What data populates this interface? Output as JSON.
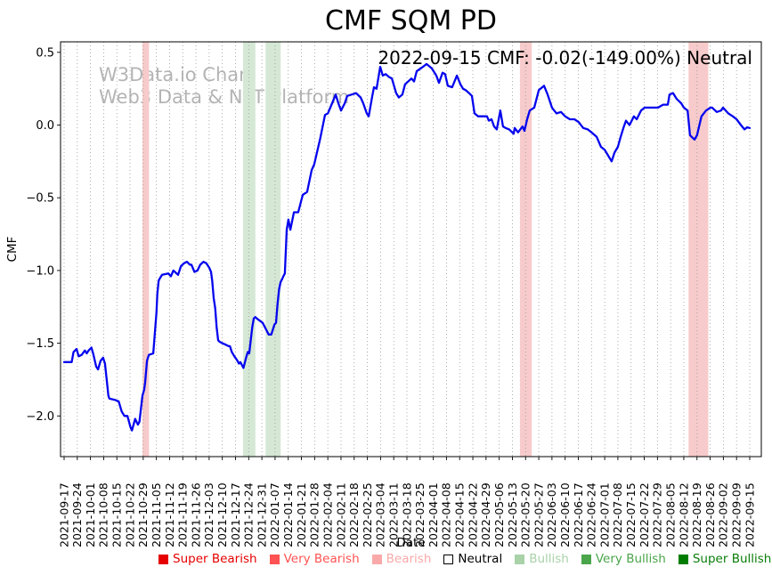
{
  "title": "CMF SQM PD",
  "annotation": "2022-09-15 CMF: -0.02(-149.00%) Neutral",
  "watermark": {
    "line1": "W3Data.io Chart",
    "line2": "Web3 Data & NFT Platform"
  },
  "axes": {
    "x_label": "Date",
    "y_label": "CMF",
    "y_tick_labels": [
      "0.5",
      "0.0",
      "−0.5",
      "−1.0",
      "−1.5",
      "−2.0"
    ],
    "y_tick_values": [
      0.5,
      0.0,
      -0.5,
      -1.0,
      -1.5,
      -2.0
    ]
  },
  "legend": [
    {
      "label": "Super Bearish",
      "color": "#e60000",
      "text_color": "#e60000",
      "edge": "#e60000"
    },
    {
      "label": "Very Bearish",
      "color": "#ff5252",
      "text_color": "#ff5252",
      "edge": "#ff5252"
    },
    {
      "label": "Bearish",
      "color": "#f9a9a9",
      "text_color": "#f9a9a9",
      "edge": "#f9a9a9"
    },
    {
      "label": "Neutral",
      "color": "#ffffff",
      "text_color": "#000000",
      "edge": "#000000"
    },
    {
      "label": "Bullish",
      "color": "#a9d2a9",
      "text_color": "#a9d2a9",
      "edge": "#a9d2a9"
    },
    {
      "label": "Very Bullish",
      "color": "#4ba54b",
      "text_color": "#4ba54b",
      "edge": "#4ba54b"
    },
    {
      "label": "Super Bullish",
      "color": "#007d00",
      "text_color": "#0a7d0a",
      "edge": "#007d00"
    }
  ],
  "chart_data": {
    "type": "line",
    "title": "CMF SQM PD",
    "xlabel": "Date",
    "ylabel": "CMF",
    "ylim": [
      -2.28,
      0.57
    ],
    "grid": "vertical-dotted",
    "legend_position": "bottom",
    "line_color": "#0505ee",
    "x_tick_labels": [
      "2021-09-17",
      "2021-09-24",
      "2021-10-01",
      "2021-10-08",
      "2021-10-15",
      "2021-10-22",
      "2021-10-29",
      "2021-11-05",
      "2021-11-12",
      "2021-11-19",
      "2021-11-26",
      "2021-12-03",
      "2021-12-10",
      "2021-12-17",
      "2021-12-24",
      "2021-12-31",
      "2022-01-07",
      "2022-01-14",
      "2022-01-21",
      "2022-01-28",
      "2022-02-04",
      "2022-02-11",
      "2022-02-18",
      "2022-02-25",
      "2022-03-04",
      "2022-03-11",
      "2022-03-18",
      "2022-03-25",
      "2022-04-01",
      "2022-04-08",
      "2022-04-15",
      "2022-04-22",
      "2022-04-29",
      "2022-05-06",
      "2022-05-13",
      "2022-05-20",
      "2022-05-27",
      "2022-06-03",
      "2022-06-10",
      "2022-06-17",
      "2022-06-24",
      "2022-07-01",
      "2022-07-08",
      "2022-07-15",
      "2022-07-22",
      "2022-07-29",
      "2022-08-05",
      "2022-08-12",
      "2022-08-19",
      "2022-08-26",
      "2022-09-02",
      "2022-09-09",
      "2022-09-15"
    ],
    "x_unit": "days_since_2021-09-17",
    "x_range_days": [
      0,
      364
    ],
    "band_colors": {
      "bearish": "#f7cbcb",
      "bullish": "#d5e7d5"
    },
    "bands": [
      {
        "from_day": 41.6,
        "to_day": 45.1,
        "kind": "bearish"
      },
      {
        "from_day": 95.0,
        "to_day": 101.5,
        "kind": "bullish"
      },
      {
        "from_day": 107.0,
        "to_day": 115.0,
        "kind": "bullish"
      },
      {
        "from_day": 242.0,
        "to_day": 248.3,
        "kind": "bearish"
      },
      {
        "from_day": 331.5,
        "to_day": 342.0,
        "kind": "bearish"
      }
    ],
    "series": [
      {
        "name": "CMF",
        "points": [
          [
            0,
            -1.63
          ],
          [
            4,
            -1.63
          ],
          [
            5,
            -1.56
          ],
          [
            6.6,
            -1.54
          ],
          [
            7.7,
            -1.59
          ],
          [
            9.3,
            -1.58
          ],
          [
            11,
            -1.55
          ],
          [
            12,
            -1.57
          ],
          [
            13,
            -1.55
          ],
          [
            14.5,
            -1.53
          ],
          [
            15.6,
            -1.58
          ],
          [
            17,
            -1.66
          ],
          [
            18,
            -1.68
          ],
          [
            19.4,
            -1.62
          ],
          [
            20.7,
            -1.6
          ],
          [
            21.7,
            -1.64
          ],
          [
            22.7,
            -1.76
          ],
          [
            23.5,
            -1.86
          ],
          [
            24,
            -1.88
          ],
          [
            27,
            -1.89
          ],
          [
            29,
            -1.9
          ],
          [
            30.6,
            -1.97
          ],
          [
            32,
            -2.0
          ],
          [
            33.6,
            -2.0
          ],
          [
            35.3,
            -2.08
          ],
          [
            36,
            -2.1
          ],
          [
            37.7,
            -2.02
          ],
          [
            39.2,
            -2.06
          ],
          [
            40,
            -2.04
          ],
          [
            41.6,
            -1.86
          ],
          [
            42.5,
            -1.82
          ],
          [
            43,
            -1.77
          ],
          [
            44,
            -1.62
          ],
          [
            45,
            -1.58
          ],
          [
            47.3,
            -1.57
          ],
          [
            47.7,
            -1.51
          ],
          [
            49,
            -1.29
          ],
          [
            49.5,
            -1.16
          ],
          [
            50.2,
            -1.07
          ],
          [
            51,
            -1.05
          ],
          [
            52,
            -1.03
          ],
          [
            55.3,
            -1.02
          ],
          [
            56.7,
            -1.04
          ],
          [
            58,
            -1.0
          ],
          [
            60.5,
            -1.03
          ],
          [
            62,
            -0.97
          ],
          [
            63.7,
            -0.95
          ],
          [
            65.2,
            -0.94
          ],
          [
            66.8,
            -0.96
          ],
          [
            67.6,
            -0.96
          ],
          [
            69.2,
            -1.01
          ],
          [
            70.8,
            -1.0
          ],
          [
            72.3,
            -0.96
          ],
          [
            74,
            -0.94
          ],
          [
            75.5,
            -0.95
          ],
          [
            77,
            -0.98
          ],
          [
            78,
            -1.01
          ],
          [
            78.6,
            -1.07
          ],
          [
            79.4,
            -1.19
          ],
          [
            80.2,
            -1.26
          ],
          [
            81,
            -1.39
          ],
          [
            81.8,
            -1.48
          ],
          [
            82.6,
            -1.49
          ],
          [
            84,
            -1.5
          ],
          [
            85.7,
            -1.51
          ],
          [
            87.3,
            -1.52
          ],
          [
            88,
            -1.52
          ],
          [
            89,
            -1.56
          ],
          [
            90.4,
            -1.59
          ],
          [
            92,
            -1.62
          ],
          [
            92.8,
            -1.64
          ],
          [
            93.6,
            -1.63
          ],
          [
            95.2,
            -1.67
          ],
          [
            96.8,
            -1.59
          ],
          [
            97.5,
            -1.56
          ],
          [
            98.3,
            -1.57
          ],
          [
            99.9,
            -1.39
          ],
          [
            100.7,
            -1.33
          ],
          [
            101.5,
            -1.32
          ],
          [
            102.3,
            -1.33
          ],
          [
            105.4,
            -1.36
          ],
          [
            106.2,
            -1.38
          ],
          [
            107.8,
            -1.42
          ],
          [
            108.6,
            -1.44
          ],
          [
            110,
            -1.44
          ],
          [
            111.7,
            -1.37
          ],
          [
            112.5,
            -1.36
          ],
          [
            113.3,
            -1.23
          ],
          [
            114.1,
            -1.13
          ],
          [
            114.9,
            -1.08
          ],
          [
            115.7,
            -1.06
          ],
          [
            116.4,
            -1.04
          ],
          [
            117.2,
            -1.02
          ],
          [
            118.2,
            -0.72
          ],
          [
            119.1,
            -0.65
          ],
          [
            120.1,
            -0.72
          ],
          [
            122,
            -0.6
          ],
          [
            124.3,
            -0.6
          ],
          [
            126.7,
            -0.48
          ],
          [
            129,
            -0.46
          ],
          [
            131.4,
            -0.31
          ],
          [
            132.8,
            -0.27
          ],
          [
            136,
            -0.09
          ],
          [
            138.5,
            0.07
          ],
          [
            140,
            0.08
          ],
          [
            142.3,
            0.15
          ],
          [
            144.2,
            0.21
          ],
          [
            145.6,
            0.15
          ],
          [
            147,
            0.1
          ],
          [
            149,
            0.15
          ],
          [
            150.3,
            0.2
          ],
          [
            152.7,
            0.21
          ],
          [
            155,
            0.22
          ],
          [
            157.4,
            0.19
          ],
          [
            158.8,
            0.15
          ],
          [
            160.7,
            0.08
          ],
          [
            161.7,
            0.06
          ],
          [
            163.6,
            0.2
          ],
          [
            164.5,
            0.26
          ],
          [
            165.9,
            0.25
          ],
          [
            167.8,
            0.4
          ],
          [
            169.2,
            0.34
          ],
          [
            170.7,
            0.35
          ],
          [
            172.6,
            0.33
          ],
          [
            174,
            0.32
          ],
          [
            176.3,
            0.22
          ],
          [
            177.7,
            0.19
          ],
          [
            179.6,
            0.21
          ],
          [
            181,
            0.28
          ],
          [
            184.4,
            0.32
          ],
          [
            185.8,
            0.3
          ],
          [
            187.2,
            0.37
          ],
          [
            190.5,
            0.4
          ],
          [
            192.4,
            0.42
          ],
          [
            195.2,
            0.39
          ],
          [
            197.6,
            0.34
          ],
          [
            199,
            0.29
          ],
          [
            200.9,
            0.36
          ],
          [
            202.3,
            0.35
          ],
          [
            203.7,
            0.27
          ],
          [
            206,
            0.26
          ],
          [
            208.5,
            0.34
          ],
          [
            210.4,
            0.28
          ],
          [
            211.8,
            0.25
          ],
          [
            213.2,
            0.24
          ],
          [
            215,
            0.22
          ],
          [
            216.5,
            0.2
          ],
          [
            217.9,
            0.08
          ],
          [
            219.8,
            0.06
          ],
          [
            222.2,
            0.06
          ],
          [
            224.5,
            0.06
          ],
          [
            225.5,
            0.03
          ],
          [
            226.9,
            0.04
          ],
          [
            228.3,
            -0.01
          ],
          [
            229.7,
            -0.03
          ],
          [
            231.6,
            0.1
          ],
          [
            233,
            -0.01
          ],
          [
            234.4,
            -0.02
          ],
          [
            236.3,
            -0.03
          ],
          [
            238.7,
            -0.06
          ],
          [
            239.2,
            -0.02
          ],
          [
            241,
            -0.05
          ],
          [
            243.4,
            -0.01
          ],
          [
            244.4,
            -0.04
          ],
          [
            245.8,
            0.04
          ],
          [
            247.2,
            0.1
          ],
          [
            249.6,
            0.12
          ],
          [
            252,
            0.24
          ],
          [
            254.8,
            0.27
          ],
          [
            256.7,
            0.21
          ],
          [
            259,
            0.12
          ],
          [
            261.4,
            0.08
          ],
          [
            263.8,
            0.09
          ],
          [
            266,
            0.06
          ],
          [
            268.5,
            0.04
          ],
          [
            270.9,
            0.04
          ],
          [
            273.2,
            0.02
          ],
          [
            275.6,
            -0.02
          ],
          [
            278,
            -0.03
          ],
          [
            280,
            -0.05
          ],
          [
            282.7,
            -0.08
          ],
          [
            285,
            -0.15
          ],
          [
            287,
            -0.17
          ],
          [
            289.8,
            -0.23
          ],
          [
            290.7,
            -0.25
          ],
          [
            292.2,
            -0.19
          ],
          [
            294,
            -0.15
          ],
          [
            295.5,
            -0.08
          ],
          [
            296.9,
            -0.02
          ],
          [
            298.3,
            0.03
          ],
          [
            300.2,
            0.0
          ],
          [
            302.5,
            0.06
          ],
          [
            304,
            0.04
          ],
          [
            306.3,
            0.1
          ],
          [
            308.2,
            0.12
          ],
          [
            311,
            0.12
          ],
          [
            313.4,
            0.12
          ],
          [
            315.3,
            0.12
          ],
          [
            318,
            0.14
          ],
          [
            320.5,
            0.14
          ],
          [
            321.4,
            0.21
          ],
          [
            323.3,
            0.22
          ],
          [
            325.2,
            0.18
          ],
          [
            327.6,
            0.15
          ],
          [
            329,
            0.12
          ],
          [
            331,
            0.1
          ],
          [
            332.3,
            -0.07
          ],
          [
            334.7,
            -0.1
          ],
          [
            336,
            -0.07
          ],
          [
            338.4,
            0.06
          ],
          [
            340.8,
            0.1
          ],
          [
            343.2,
            0.12
          ],
          [
            344,
            0.12
          ],
          [
            346.5,
            0.09
          ],
          [
            348.8,
            0.1
          ],
          [
            349.8,
            0.12
          ],
          [
            352.6,
            0.08
          ],
          [
            355,
            0.06
          ],
          [
            357,
            0.04
          ],
          [
            359.3,
            0.0
          ],
          [
            361.2,
            -0.03
          ],
          [
            362.6,
            -0.015
          ],
          [
            364,
            -0.02
          ]
        ]
      }
    ]
  }
}
